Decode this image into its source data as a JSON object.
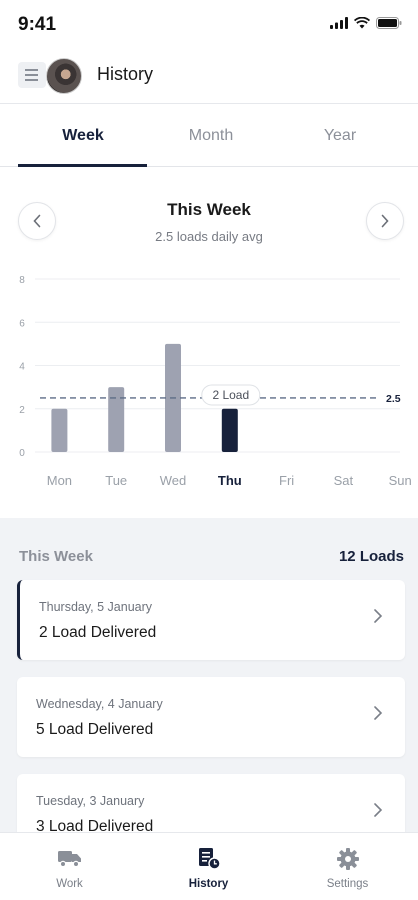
{
  "status_bar": {
    "time": "9:41"
  },
  "app_bar": {
    "title": "History"
  },
  "tabs": [
    {
      "label": "Week",
      "active": true
    },
    {
      "label": "Month",
      "active": false
    },
    {
      "label": "Year",
      "active": false
    }
  ],
  "week_nav": {
    "title": "This Week",
    "subtitle": "2.5 loads daily avg"
  },
  "chart_data": {
    "type": "bar",
    "categories": [
      "Mon",
      "Tue",
      "Wed",
      "Thu",
      "Fri",
      "Sat",
      "Sun"
    ],
    "values": [
      2,
      3,
      5,
      2,
      0,
      0,
      0
    ],
    "selected_category": "Thu",
    "ylim": [
      0,
      8
    ],
    "yticks": [
      "0",
      "2",
      "4",
      "6",
      "8"
    ],
    "average_line": {
      "value": 2.5,
      "label": "2.5"
    },
    "tooltip": "2 Load",
    "grid": true,
    "colors": {
      "bar": "#9ea2b1",
      "selected_bar": "#17213b",
      "average": "#5d6c86"
    }
  },
  "list": {
    "title": "This Week",
    "count_label": "12 Loads",
    "items": [
      {
        "date": "Thursday, 5 January",
        "title": "2 Load Delivered",
        "selected": true
      },
      {
        "date": "Wednesday, 4 January",
        "title": "5 Load Delivered",
        "selected": false
      },
      {
        "date": "Tuesday, 3 January",
        "title": "3 Load Delivered",
        "selected": false
      }
    ]
  },
  "bottom_nav": [
    {
      "label": "Work",
      "icon": "truck-icon",
      "active": false
    },
    {
      "label": "History",
      "icon": "history-document-icon",
      "active": true
    },
    {
      "label": "Settings",
      "icon": "gear-icon",
      "active": false
    }
  ],
  "colors": {
    "accent": "#17213b",
    "muted": "#8c9099",
    "list_bg": "#f1f3f6"
  }
}
